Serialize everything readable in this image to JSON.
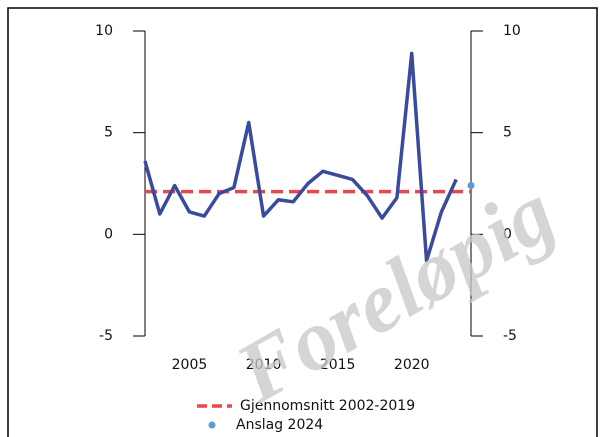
{
  "chart_data": {
    "type": "line",
    "x": [
      2002,
      2003,
      2004,
      2005,
      2006,
      2007,
      2008,
      2009,
      2010,
      2011,
      2012,
      2013,
      2014,
      2015,
      2016,
      2017,
      2018,
      2019,
      2020,
      2021,
      2022,
      2023
    ],
    "series": [
      {
        "color": "#3a4a9c",
        "values": [
          3.6,
          1.0,
          2.4,
          1.1,
          0.9,
          2.0,
          2.3,
          5.5,
          0.9,
          1.7,
          1.6,
          2.5,
          3.1,
          2.9,
          2.7,
          1.9,
          0.8,
          1.8,
          8.9,
          -1.3,
          1.1,
          2.7
        ]
      }
    ],
    "average": {
      "name": "Gjennomsnitt 2002-2019",
      "color": "#e8474c",
      "value": 2.1
    },
    "estimate": {
      "name": "Anslag 2024",
      "color": "#5b9bd5",
      "x": 2024,
      "value": 2.4
    },
    "xlim": [
      2002,
      2024
    ],
    "xticks": [
      2005,
      2010,
      2015,
      2020
    ],
    "ylim": [
      -5,
      10
    ],
    "yticks": [
      -5,
      0,
      5,
      10
    ],
    "y2lim": [
      -5,
      10
    ],
    "y2ticks": [
      -5,
      0,
      5,
      10
    ],
    "watermark": "Foreløpig"
  }
}
